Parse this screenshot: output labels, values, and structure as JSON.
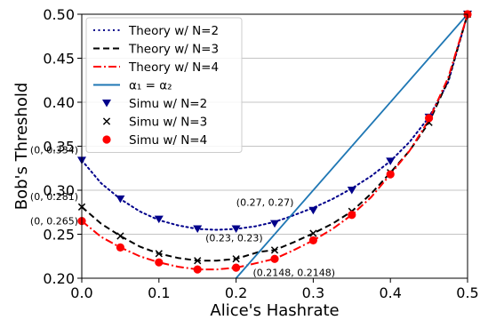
{
  "chart_data": {
    "type": "line",
    "title": "",
    "xlabel": "Alice's Hashrate",
    "ylabel": "Bob's Threshold",
    "xlim": [
      0,
      0.5
    ],
    "ylim": [
      0.2,
      0.5
    ],
    "xticks": [
      0,
      0.1,
      0.2,
      0.3,
      0.4,
      0.5
    ],
    "xtick_labels": [
      "0.0",
      "0.1",
      "0.2",
      "0.3",
      "0.4",
      "0.5"
    ],
    "yticks": [
      0.2,
      0.25,
      0.3,
      0.35,
      0.4,
      0.45,
      0.5
    ],
    "ytick_labels": [
      "0.20",
      "0.25",
      "0.30",
      "0.35",
      "0.40",
      "0.45",
      "0.50"
    ],
    "grid": "horizontal",
    "legend_position": "top-left",
    "series": [
      {
        "name": "Theory w/ N=2",
        "kind": "line",
        "style": "dotted",
        "color": "#00008b",
        "x": [
          0,
          0.025,
          0.05,
          0.075,
          0.1,
          0.125,
          0.15,
          0.175,
          0.2,
          0.225,
          0.25,
          0.27,
          0.3,
          0.325,
          0.35,
          0.375,
          0.4,
          0.425,
          0.45,
          0.475,
          0.5
        ],
        "y": [
          0.334,
          0.308,
          0.29,
          0.276,
          0.266,
          0.26,
          0.256,
          0.255,
          0.256,
          0.259,
          0.264,
          0.27,
          0.28,
          0.29,
          0.302,
          0.316,
          0.333,
          0.355,
          0.383,
          0.423,
          0.5
        ]
      },
      {
        "name": "Theory w/ N=3",
        "kind": "line",
        "style": "dashed",
        "color": "#000000",
        "x": [
          0,
          0.025,
          0.05,
          0.075,
          0.1,
          0.125,
          0.15,
          0.175,
          0.2,
          0.23,
          0.25,
          0.275,
          0.3,
          0.325,
          0.35,
          0.375,
          0.4,
          0.425,
          0.45,
          0.475,
          0.5
        ],
        "y": [
          0.281,
          0.262,
          0.248,
          0.236,
          0.228,
          0.223,
          0.22,
          0.22,
          0.222,
          0.23,
          0.232,
          0.241,
          0.251,
          0.262,
          0.276,
          0.296,
          0.32,
          0.345,
          0.377,
          0.425,
          0.5
        ]
      },
      {
        "name": "Theory w/ N=4",
        "kind": "line",
        "style": "dashdot",
        "color": "#ff0000",
        "x": [
          0,
          0.025,
          0.05,
          0.075,
          0.1,
          0.125,
          0.15,
          0.175,
          0.2,
          0.2148,
          0.25,
          0.275,
          0.3,
          0.325,
          0.35,
          0.375,
          0.4,
          0.425,
          0.45,
          0.475,
          0.5
        ],
        "y": [
          0.265,
          0.247,
          0.235,
          0.225,
          0.218,
          0.213,
          0.21,
          0.21,
          0.212,
          0.2148,
          0.222,
          0.232,
          0.243,
          0.256,
          0.272,
          0.292,
          0.318,
          0.345,
          0.38,
          0.428,
          0.5
        ]
      },
      {
        "name": "α₁ = α₂",
        "kind": "line",
        "style": "solid",
        "color": "#1f77b4",
        "x": [
          0.2,
          0.5
        ],
        "y": [
          0.2,
          0.5
        ]
      },
      {
        "name": "Simu w/ N=2",
        "kind": "scatter",
        "marker": "triangle-down",
        "color": "#00008b",
        "x": [
          0,
          0.05,
          0.1,
          0.15,
          0.2,
          0.25,
          0.3,
          0.35,
          0.4,
          0.45,
          0.5
        ],
        "y": [
          0.334,
          0.29,
          0.267,
          0.256,
          0.256,
          0.262,
          0.277,
          0.3,
          0.333,
          0.383,
          0.5
        ]
      },
      {
        "name": "Simu w/ N=3",
        "kind": "scatter",
        "marker": "x",
        "color": "#000000",
        "x": [
          0,
          0.05,
          0.1,
          0.15,
          0.2,
          0.25,
          0.3,
          0.35,
          0.4,
          0.45,
          0.5
        ],
        "y": [
          0.281,
          0.248,
          0.228,
          0.22,
          0.222,
          0.232,
          0.251,
          0.276,
          0.32,
          0.377,
          0.5
        ]
      },
      {
        "name": "Simu w/ N=4",
        "kind": "scatter",
        "marker": "circle",
        "color": "#ff0000",
        "x": [
          0,
          0.05,
          0.1,
          0.15,
          0.2,
          0.25,
          0.3,
          0.35,
          0.4,
          0.45,
          0.5
        ],
        "y": [
          0.265,
          0.235,
          0.218,
          0.21,
          0.212,
          0.222,
          0.243,
          0.272,
          0.318,
          0.382,
          0.5
        ]
      }
    ],
    "annotations": [
      {
        "text": "(0, 0.334)",
        "x": 0,
        "y": 0.334,
        "anchor": "end"
      },
      {
        "text": "(0, 0.281)",
        "x": 0,
        "y": 0.281,
        "anchor": "end"
      },
      {
        "text": "(0, 0.265)",
        "x": 0,
        "y": 0.265,
        "anchor": "end"
      },
      {
        "text": "(0.27, 0.27)",
        "x": 0.27,
        "y": 0.27,
        "anchor": "end"
      },
      {
        "text": "(0.23, 0.23)",
        "x": 0.23,
        "y": 0.23,
        "anchor": "end"
      },
      {
        "text": "(0.2148, 0.2148)",
        "x": 0.2148,
        "y": 0.2148,
        "anchor": "start"
      }
    ]
  }
}
